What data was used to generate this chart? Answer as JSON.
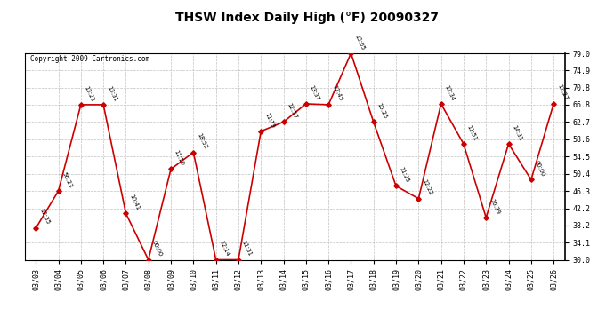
{
  "title": "THSW Index Daily High (°F) 20090327",
  "copyright": "Copyright 2009 Cartronics.com",
  "dates": [
    "03/03",
    "03/04",
    "03/05",
    "03/06",
    "03/07",
    "03/08",
    "03/09",
    "03/10",
    "03/11",
    "03/12",
    "03/13",
    "03/14",
    "03/15",
    "03/16",
    "03/17",
    "03/18",
    "03/19",
    "03/20",
    "03/21",
    "03/22",
    "03/23",
    "03/24",
    "03/25",
    "03/26"
  ],
  "values": [
    37.5,
    46.3,
    66.8,
    66.8,
    41.0,
    30.0,
    51.5,
    55.5,
    30.0,
    30.0,
    60.5,
    62.7,
    67.0,
    66.8,
    79.0,
    62.7,
    47.5,
    44.5,
    67.0,
    57.5,
    40.0,
    57.5,
    49.0,
    67.0
  ],
  "labels": [
    "12:35",
    "56:23",
    "13:23",
    "13:31",
    "10:41",
    "00:00",
    "11:10",
    "18:52",
    "12:14",
    "11:31",
    "11:19",
    "12:57",
    "13:37",
    "12:45",
    "13:05",
    "15:25",
    "11:25",
    "12:22",
    "12:34",
    "11:51",
    "16:39",
    "14:31",
    "00:00",
    "12:27"
  ],
  "line_color": "#cc0000",
  "marker_color": "#cc0000",
  "bg_color": "#ffffff",
  "grid_color": "#c0c0c0",
  "ylim_min": 30.0,
  "ylim_max": 79.0,
  "yticks": [
    30.0,
    34.1,
    38.2,
    42.2,
    46.3,
    50.4,
    54.5,
    58.6,
    62.7,
    66.8,
    70.8,
    74.9,
    79.0
  ],
  "title_fontsize": 10,
  "tick_fontsize": 6,
  "label_fontsize": 5.5,
  "copyright_fontsize": 5.5
}
